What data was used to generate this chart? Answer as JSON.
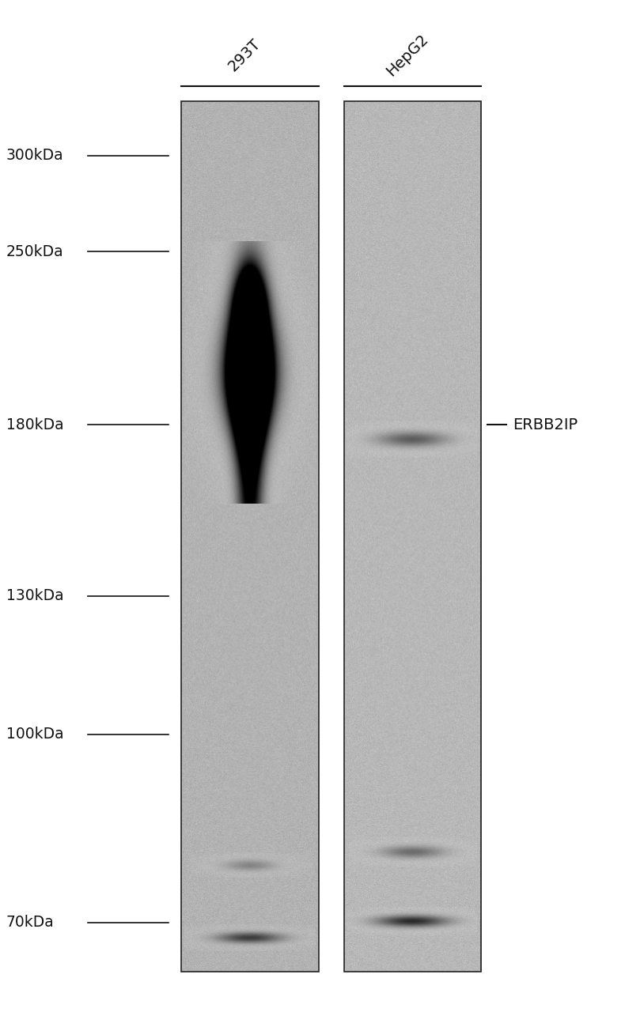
{
  "fig_width": 7.9,
  "fig_height": 12.8,
  "background_color": "#ffffff",
  "lane_labels": [
    "293T",
    "HepG2"
  ],
  "marker_labels": [
    "300kDa",
    "250kDa",
    "180kDa",
    "130kDa",
    "100kDa",
    "70kDa"
  ],
  "marker_values": [
    300,
    250,
    180,
    130,
    100,
    70
  ],
  "protein_label": "ERBB2IP",
  "protein_kda": 180,
  "gel_bg_color": "#c8c8c8",
  "gel_light_color": "#e0e0e0",
  "band_color_dark": "#1a1a1a",
  "band_color_mid": "#555555",
  "band_color_light": "#888888"
}
